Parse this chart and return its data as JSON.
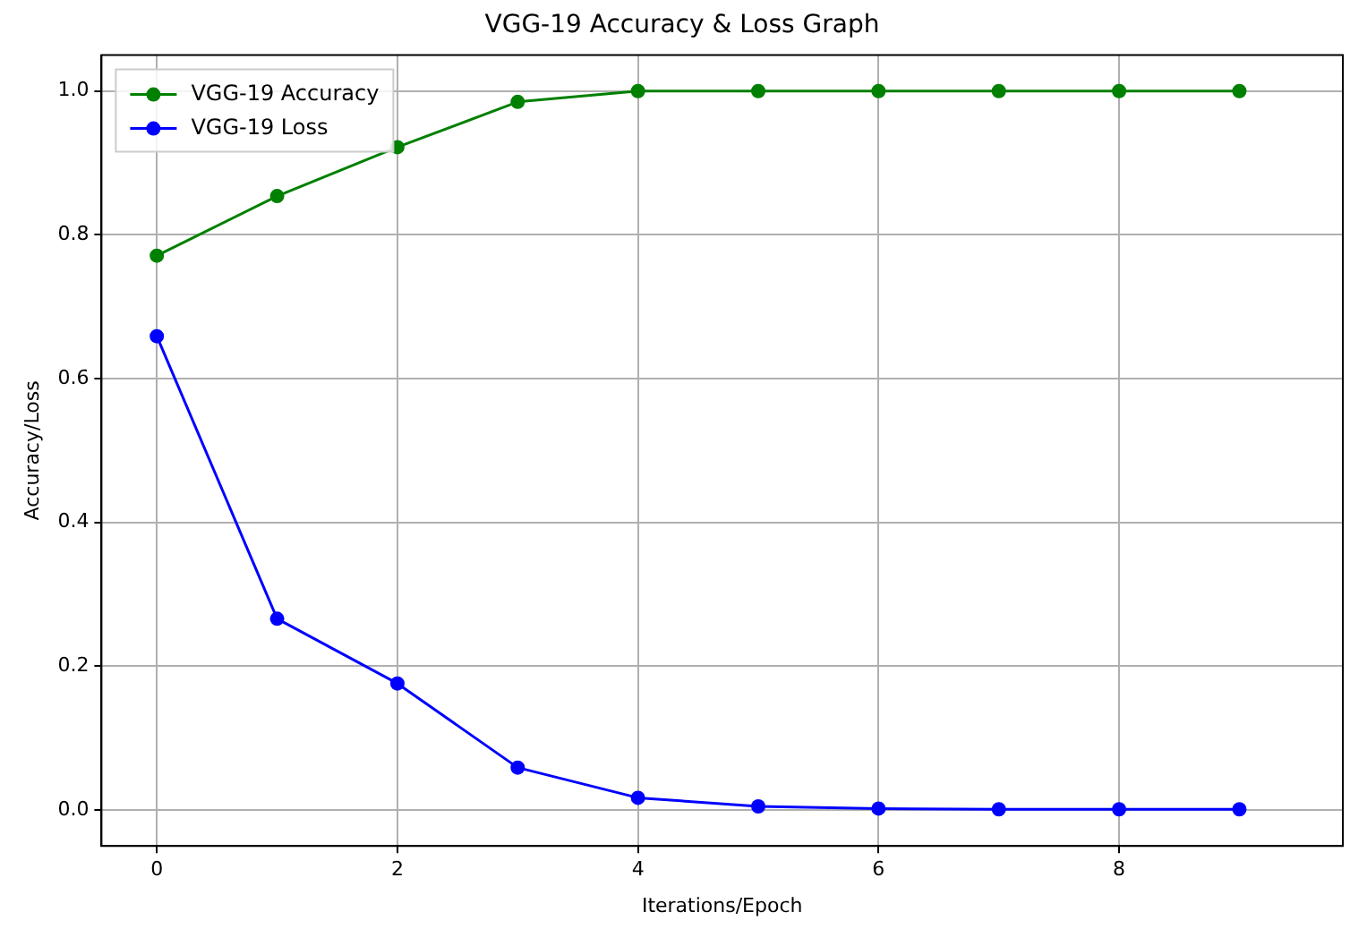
{
  "chart_data": {
    "type": "line",
    "title": "VGG-19 Accuracy & Loss Graph",
    "xlabel": "Iterations/Epoch",
    "ylabel": "Accuracy/Loss",
    "x": [
      0,
      1,
      2,
      3,
      4,
      5,
      6,
      7,
      8,
      9
    ],
    "series": [
      {
        "name": "VGG-19 Accuracy",
        "color": "#008000",
        "values": [
          0.771,
          0.854,
          0.922,
          0.985,
          1.0,
          1.0,
          1.0,
          1.0,
          1.0,
          1.0
        ]
      },
      {
        "name": "VGG-19 Loss",
        "color": "#0000ff",
        "values": [
          0.659,
          0.266,
          0.176,
          0.059,
          0.017,
          0.005,
          0.002,
          0.001,
          0.001,
          0.001
        ]
      }
    ],
    "xlim": [
      -0.46,
      9.86
    ],
    "xticks": [
      0,
      2,
      4,
      6,
      8
    ],
    "ylim": [
      -0.05,
      1.05
    ],
    "yticks": [
      {
        "value": 0,
        "label": "0.0"
      },
      {
        "value": 0.2,
        "label": "0.2"
      },
      {
        "value": 0.4,
        "label": "0.4"
      },
      {
        "value": 0.6,
        "label": "0.6"
      },
      {
        "value": 0.8,
        "label": "0.8"
      },
      {
        "value": 1,
        "label": "1.0"
      }
    ],
    "grid": true,
    "legend": "top left",
    "marker": "circle",
    "line_style": "solid"
  }
}
